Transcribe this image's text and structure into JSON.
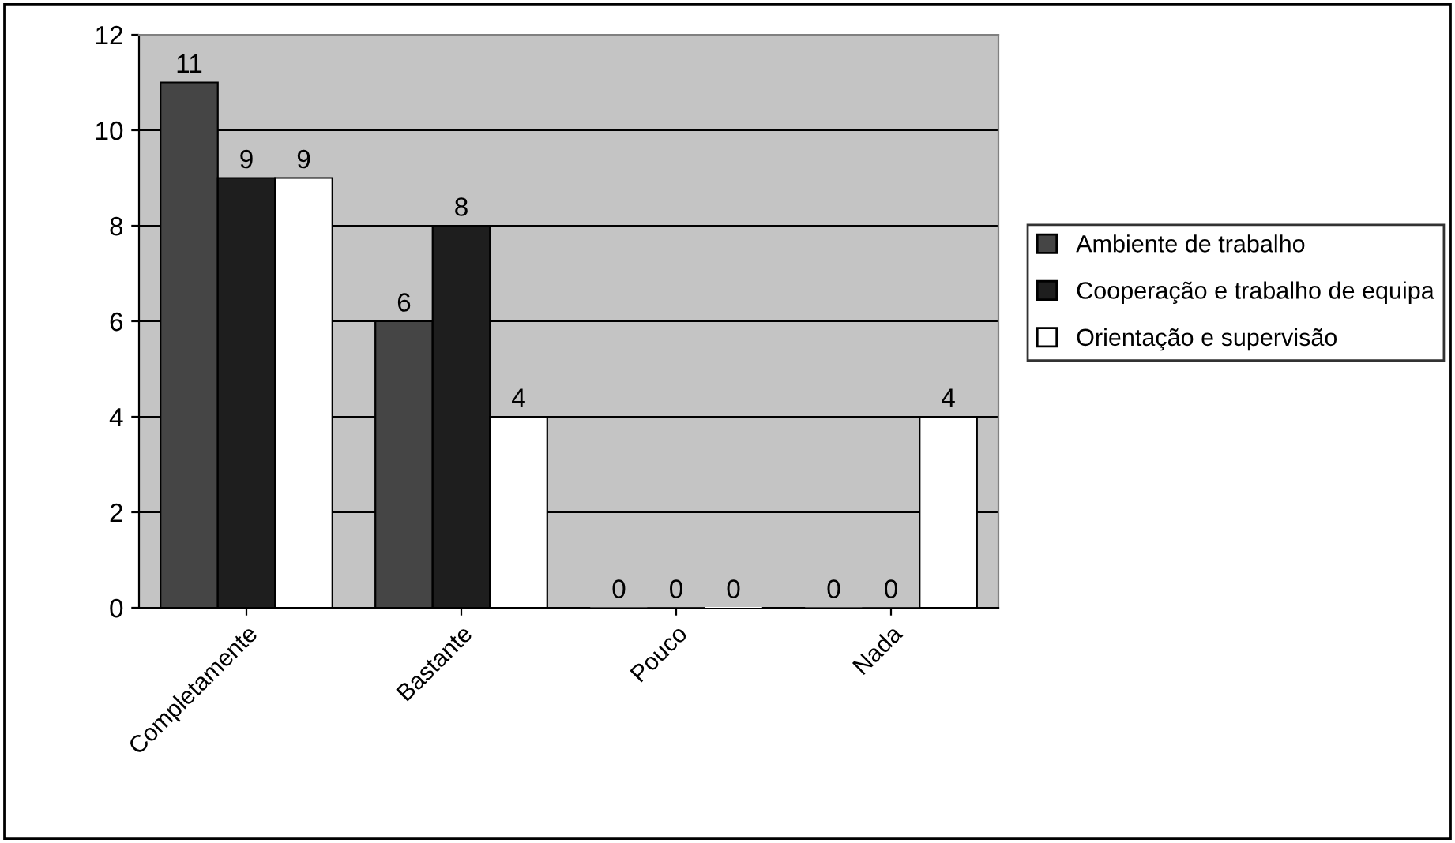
{
  "chart_data": {
    "type": "bar",
    "categories": [
      "Completamente",
      "Bastante",
      "Pouco",
      "Nada"
    ],
    "series": [
      {
        "name": "Ambiente de trabalho",
        "color": "#454545",
        "values": [
          11,
          6,
          0,
          0
        ]
      },
      {
        "name": "Cooperação e trabalho de equipa",
        "color": "#1e1e1e",
        "values": [
          9,
          8,
          0,
          0
        ]
      },
      {
        "name": "Orientação e supervisão",
        "color": "#ffffff",
        "values": [
          9,
          4,
          0,
          4
        ]
      }
    ],
    "ylim": [
      0,
      12
    ],
    "yticks": [
      0,
      2,
      4,
      6,
      8,
      10,
      12
    ],
    "grid": "y",
    "legend": "right",
    "data_labels": true
  }
}
